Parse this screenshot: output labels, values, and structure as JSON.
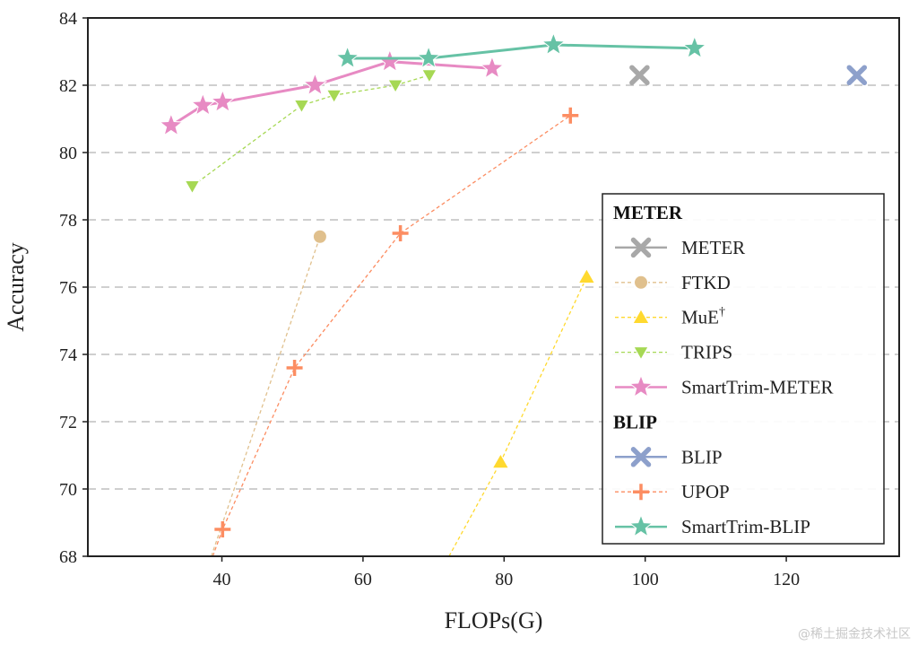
{
  "watermark": "@稀土掘金技术社区",
  "chart_data": {
    "type": "line",
    "xlabel": "FLOPs(G)",
    "ylabel": "Accuracy",
    "xlim": [
      21,
      136
    ],
    "ylim": [
      68,
      84
    ],
    "xticks": [
      40,
      60,
      80,
      100,
      120
    ],
    "yticks": [
      68,
      70,
      72,
      74,
      76,
      78,
      80,
      82,
      84
    ],
    "grid": "horizontal dashed",
    "legend_position": "lower-right",
    "series": [
      {
        "name": "METER",
        "group": "METER",
        "color": "#a8a8a8",
        "marker": "x",
        "linestyle": "solid",
        "x": [
          99.2
        ],
        "y": [
          82.3
        ]
      },
      {
        "name": "FTKD",
        "group": "METER",
        "color": "#e0c08d",
        "marker": "circle",
        "linestyle": "dashed",
        "x": [
          38.5,
          53.9
        ],
        "y": [
          68.0,
          77.5
        ]
      },
      {
        "name": "MuE",
        "label_suffix": "†",
        "group": "METER",
        "color": "#ffd92f",
        "marker": "triangle-up",
        "linestyle": "dashed",
        "x": [
          72.2,
          79.5,
          91.7
        ],
        "y": [
          68.0,
          70.8,
          76.3
        ]
      },
      {
        "name": "TRIPS",
        "group": "METER",
        "color": "#a6d854",
        "marker": "triangle-down",
        "linestyle": "dashed",
        "x": [
          35.8,
          51.3,
          55.9,
          64.6,
          69.4
        ],
        "y": [
          79.0,
          81.4,
          81.7,
          82.0,
          82.3
        ]
      },
      {
        "name": "SmartTrim-METER",
        "group": "METER",
        "color": "#e78ac3",
        "marker": "star",
        "linestyle": "solid",
        "x": [
          32.8,
          37.3,
          40.1,
          53.2,
          63.8,
          78.3
        ],
        "y": [
          80.8,
          81.4,
          81.5,
          82.0,
          82.7,
          82.5
        ]
      },
      {
        "name": "BLIP",
        "group": "BLIP",
        "color": "#8da0cb",
        "marker": "x",
        "linestyle": "solid",
        "x": [
          130.0
        ],
        "y": [
          82.3
        ]
      },
      {
        "name": "UPOP",
        "group": "BLIP",
        "color": "#fc8d62",
        "marker": "plus",
        "linestyle": "dashed",
        "x": [
          38.7,
          40.1,
          50.3,
          65.3,
          89.4
        ],
        "y": [
          68.0,
          68.8,
          73.6,
          77.6,
          81.1
        ]
      },
      {
        "name": "SmartTrim-BLIP",
        "group": "BLIP",
        "color": "#66c2a5",
        "marker": "star",
        "linestyle": "solid",
        "x": [
          57.8,
          69.3,
          87.0,
          107.0
        ],
        "y": [
          82.8,
          82.8,
          83.2,
          83.1
        ]
      }
    ],
    "legend": [
      {
        "type": "header",
        "label": "METER"
      },
      {
        "type": "entry",
        "series": "METER",
        "label": "METER"
      },
      {
        "type": "entry",
        "series": "FTKD",
        "label": "FTKD"
      },
      {
        "type": "entry",
        "series": "MuE",
        "label": "MuE",
        "sup": "†"
      },
      {
        "type": "entry",
        "series": "TRIPS",
        "label": "TRIPS"
      },
      {
        "type": "entry",
        "series": "SmartTrim-METER",
        "label": "SmartTrim-METER"
      },
      {
        "type": "header",
        "label": "BLIP"
      },
      {
        "type": "entry",
        "series": "BLIP",
        "label": "BLIP"
      },
      {
        "type": "entry",
        "series": "UPOP",
        "label": "UPOP"
      },
      {
        "type": "entry",
        "series": "SmartTrim-BLIP",
        "label": "SmartTrim-BLIP"
      }
    ]
  }
}
